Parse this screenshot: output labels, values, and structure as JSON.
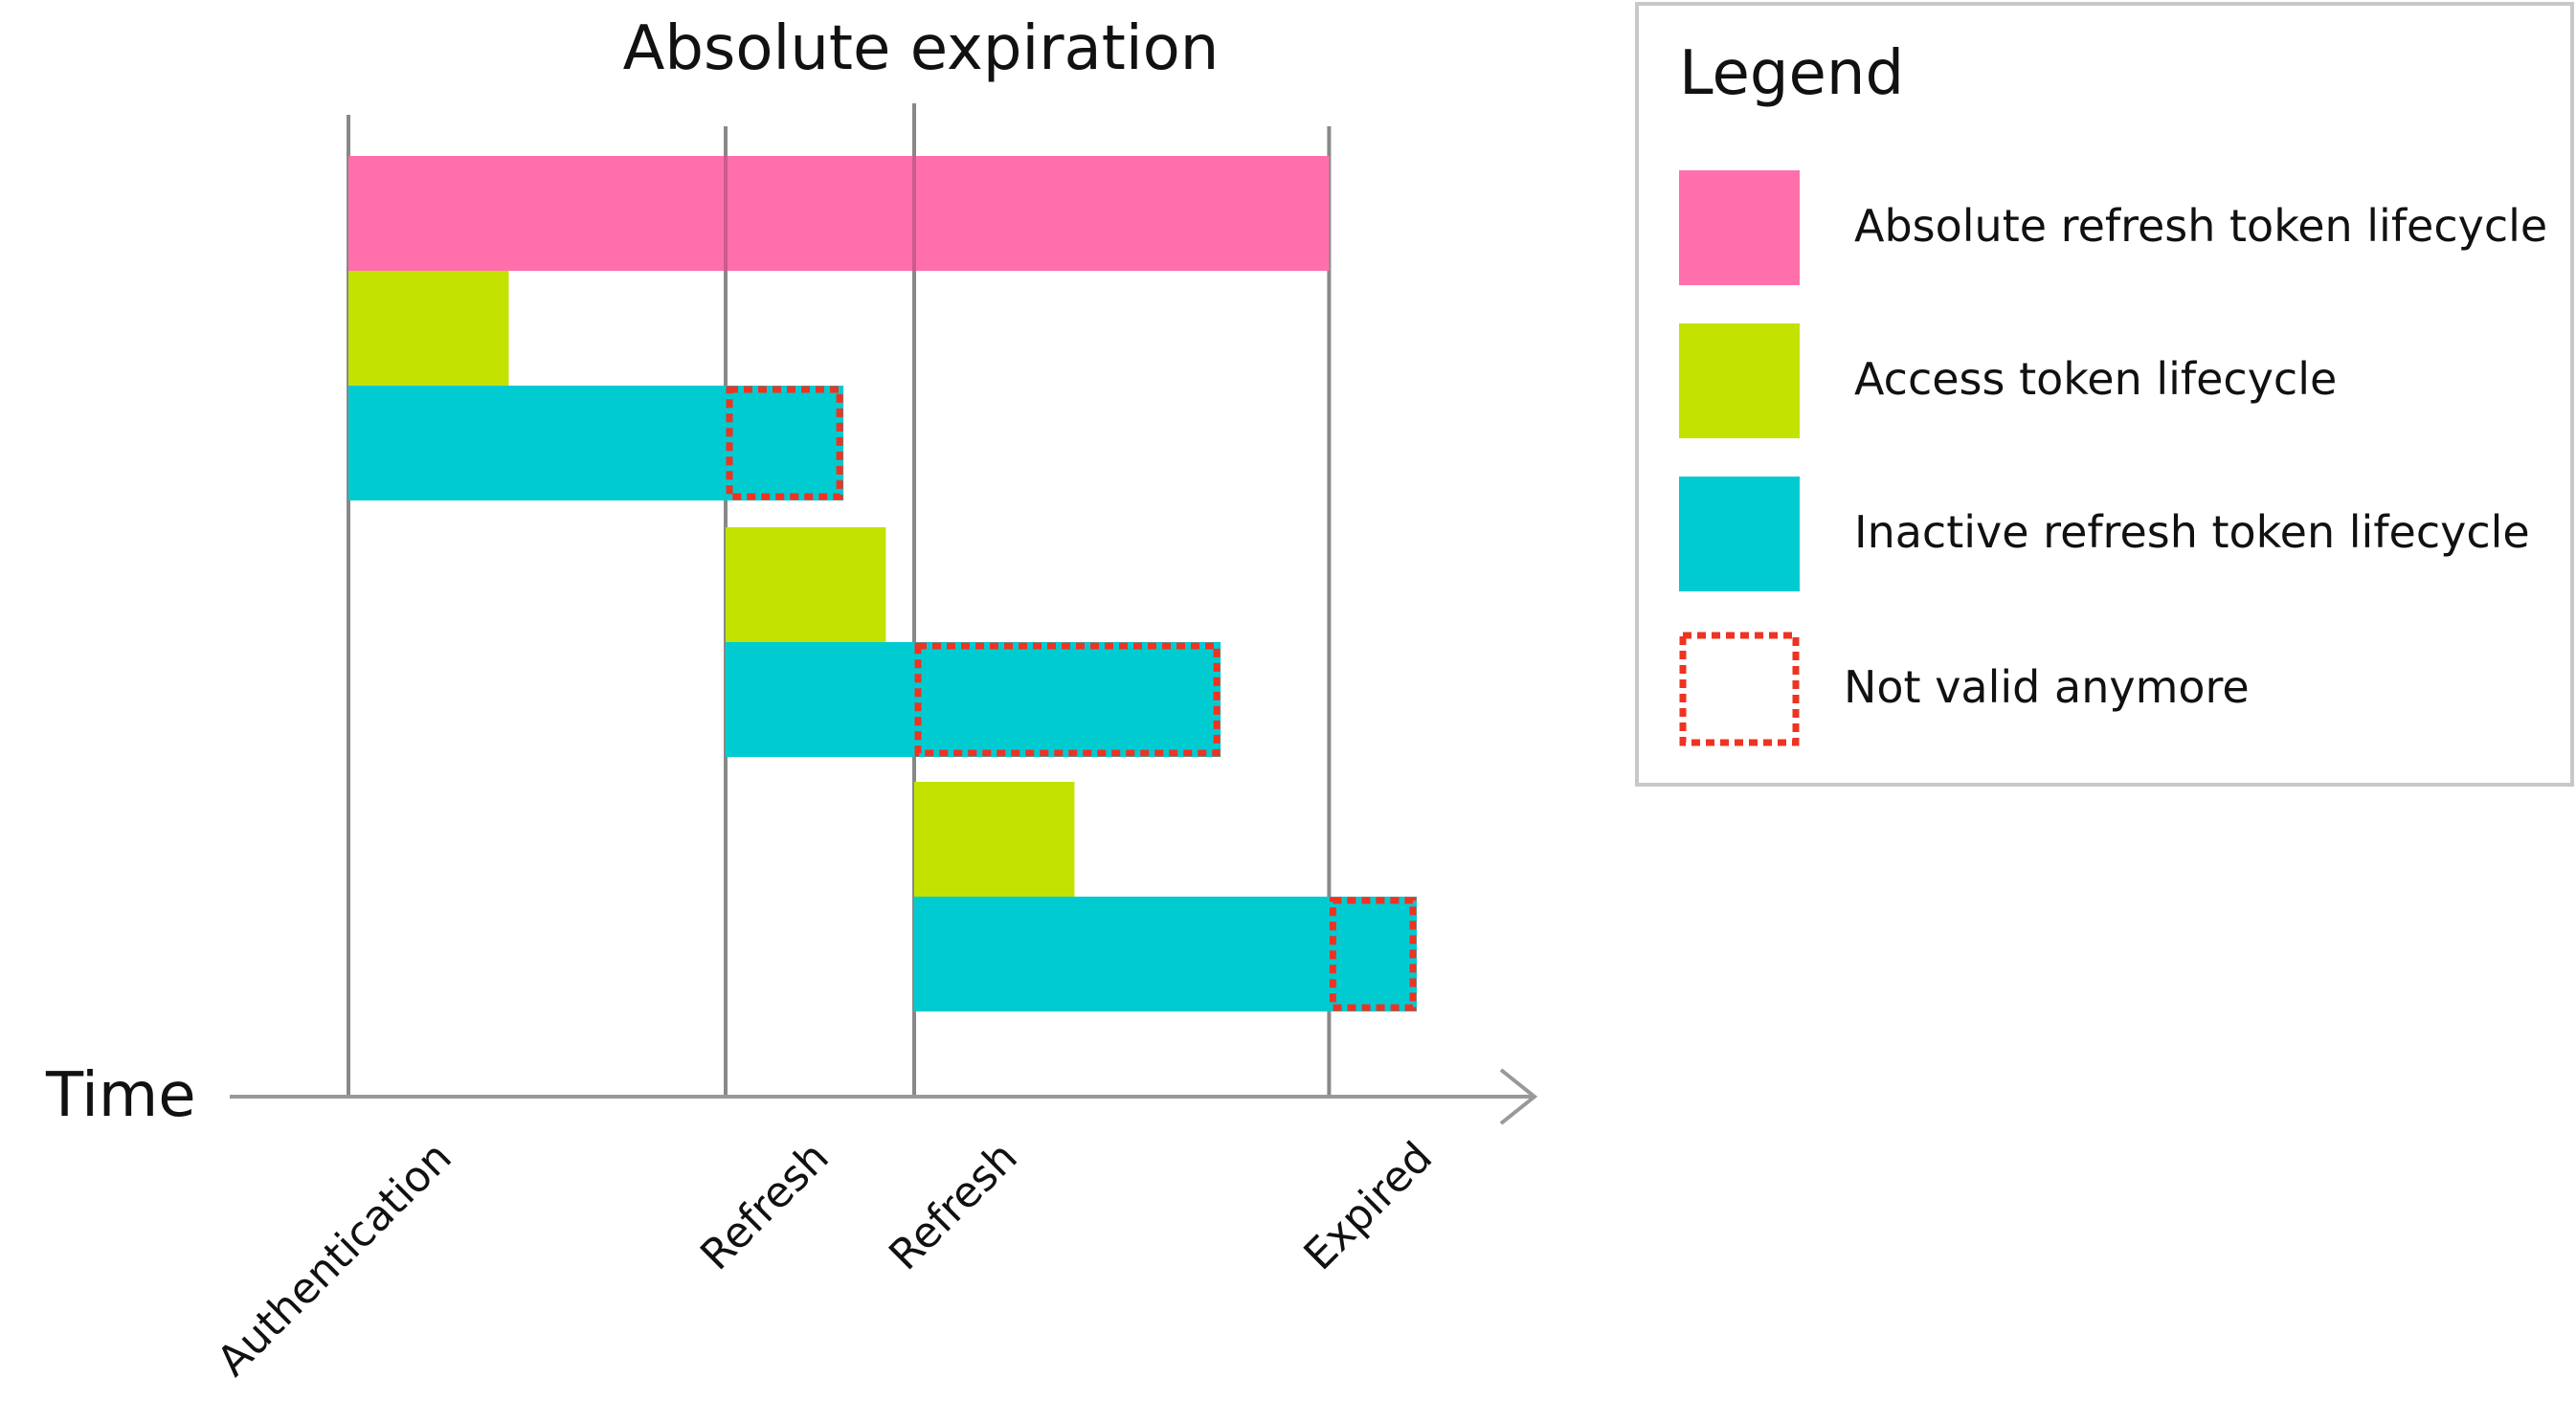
{
  "title": "Absolute expiration",
  "axis_label": "Time",
  "events": [
    {
      "key": "authentication",
      "label": "Authentication",
      "t": 0
    },
    {
      "key": "refresh-1",
      "label": "Refresh",
      "t": 4
    },
    {
      "key": "refresh-2",
      "label": "Refresh",
      "t": 6
    },
    {
      "key": "expired",
      "label": "Expired",
      "t": 10.4
    }
  ],
  "colors": {
    "absolute": "#ff6fab",
    "access": "#c3e200",
    "inactive": "#00cbd1",
    "invalid_border": "#ee3322",
    "gridline": "#888888",
    "axis": "#999999"
  },
  "bars": [
    {
      "row": 0,
      "type": "absolute",
      "start": 0,
      "end": 10.4
    },
    {
      "row": 1,
      "type": "access",
      "start": 0,
      "end": 1.7
    },
    {
      "row": 2,
      "type": "inactive",
      "start": 0,
      "end": 5.25
    },
    {
      "row": 2,
      "type": "invalid",
      "start": 4,
      "end": 5.25
    },
    {
      "row": 3,
      "type": "access",
      "start": 4,
      "end": 5.7
    },
    {
      "row": 4,
      "type": "inactive",
      "start": 4,
      "end": 9.25
    },
    {
      "row": 4,
      "type": "invalid",
      "start": 6,
      "end": 9.25
    },
    {
      "row": 5,
      "type": "access",
      "start": 6,
      "end": 7.7
    },
    {
      "row": 6,
      "type": "inactive",
      "start": 6,
      "end": 11.33
    },
    {
      "row": 6,
      "type": "invalid",
      "start": 10.4,
      "end": 11.33
    }
  ],
  "legend": {
    "title": "Legend",
    "items": [
      {
        "key": "absolute",
        "label": "Absolute refresh token lifecycle"
      },
      {
        "key": "access",
        "label": "Access token lifecycle"
      },
      {
        "key": "inactive",
        "label": "Inactive refresh token lifecycle"
      },
      {
        "key": "invalid",
        "label": "Not valid anymore"
      }
    ]
  }
}
